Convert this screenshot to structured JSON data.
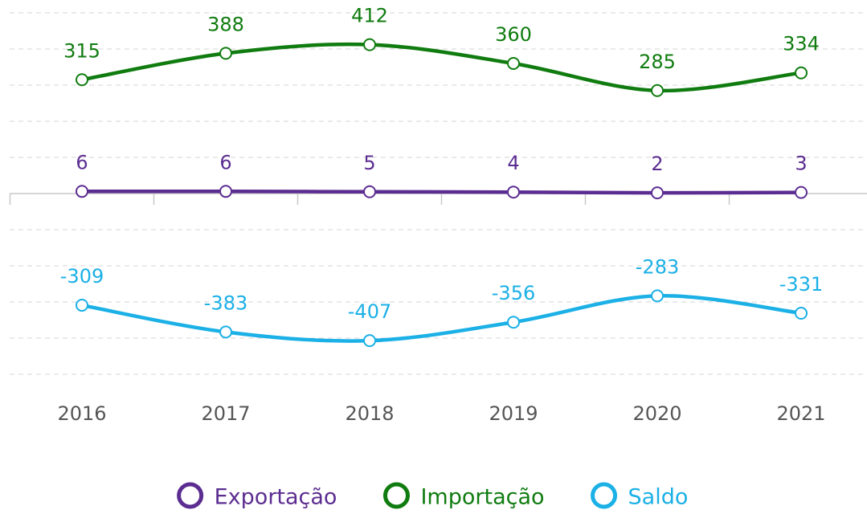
{
  "chart_data": {
    "type": "line",
    "categories": [
      "2016",
      "2017",
      "2018",
      "2019",
      "2020",
      "2021"
    ],
    "series": [
      {
        "name": "Exportação",
        "color": "#5c2d91",
        "values": [
          6,
          6,
          5,
          4,
          2,
          3
        ]
      },
      {
        "name": "Importação",
        "color": "#107c10",
        "values": [
          315,
          388,
          412,
          360,
          285,
          334
        ]
      },
      {
        "name": "Saldo",
        "color": "#1bb0e6",
        "values": [
          -309,
          -383,
          -407,
          -356,
          -283,
          -331
        ]
      }
    ],
    "ylim": [
      -500,
      500
    ],
    "yticks": [
      -500,
      -400,
      -300,
      -200,
      -100,
      0,
      100,
      200,
      300,
      400,
      500
    ],
    "grid": true,
    "legend": "bottom"
  }
}
